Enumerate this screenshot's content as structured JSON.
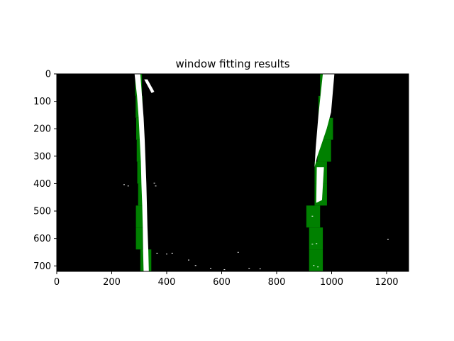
{
  "chart_data": {
    "type": "heatmap",
    "title": "window fitting results",
    "xlabel": "",
    "ylabel": "",
    "xlim": [
      0,
      1280
    ],
    "ylim": [
      720,
      0
    ],
    "xticks": [
      0,
      200,
      400,
      600,
      800,
      1000,
      1200
    ],
    "yticks": [
      0,
      100,
      200,
      300,
      400,
      500,
      600,
      700
    ],
    "grid": false,
    "background_color": "#000000",
    "line_pixel_color": "#ffffff",
    "window_color": "#008000",
    "left_windows": [
      {
        "x0": 285,
        "x1": 310,
        "y0": 0,
        "y1": 80
      },
      {
        "x0": 287,
        "x1": 312,
        "y0": 80,
        "y1": 160
      },
      {
        "x0": 289,
        "x1": 314,
        "y0": 160,
        "y1": 240
      },
      {
        "x0": 291,
        "x1": 316,
        "y0": 240,
        "y1": 320
      },
      {
        "x0": 293,
        "x1": 318,
        "y0": 320,
        "y1": 400
      },
      {
        "x0": 296,
        "x1": 321,
        "y0": 400,
        "y1": 480
      },
      {
        "x0": 288,
        "x1": 313,
        "y0": 480,
        "y1": 560
      },
      {
        "x0": 288,
        "x1": 313,
        "y0": 560,
        "y1": 640
      },
      {
        "x0": 304,
        "x1": 344,
        "y0": 640,
        "y1": 720
      }
    ],
    "right_windows": [
      {
        "x0": 958,
        "x1": 998,
        "y0": 0,
        "y1": 80
      },
      {
        "x0": 952,
        "x1": 992,
        "y0": 80,
        "y1": 160
      },
      {
        "x0": 955,
        "x1": 1005,
        "y0": 160,
        "y1": 240
      },
      {
        "x0": 948,
        "x1": 998,
        "y0": 240,
        "y1": 320
      },
      {
        "x0": 938,
        "x1": 983,
        "y0": 320,
        "y1": 400
      },
      {
        "x0": 938,
        "x1": 983,
        "y0": 400,
        "y1": 480
      },
      {
        "x0": 908,
        "x1": 958,
        "y0": 480,
        "y1": 560
      },
      {
        "x0": 918,
        "x1": 968,
        "y0": 560,
        "y1": 640
      },
      {
        "x0": 918,
        "x1": 968,
        "y0": 640,
        "y1": 720
      }
    ],
    "left_lane_pixels": [
      {
        "x": 283,
        "y": 0
      },
      {
        "x": 292,
        "y": 80
      },
      {
        "x": 298,
        "y": 160
      },
      {
        "x": 302,
        "y": 240
      },
      {
        "x": 306,
        "y": 320
      },
      {
        "x": 308,
        "y": 400
      },
      {
        "x": 311,
        "y": 480
      },
      {
        "x": 313,
        "y": 560
      },
      {
        "x": 314,
        "y": 640
      },
      {
        "x": 316,
        "y": 720
      },
      {
        "x": 335,
        "y": 720
      },
      {
        "x": 333,
        "y": 640
      },
      {
        "x": 330,
        "y": 560
      },
      {
        "x": 328,
        "y": 480
      },
      {
        "x": 326,
        "y": 400
      },
      {
        "x": 323,
        "y": 320
      },
      {
        "x": 320,
        "y": 240
      },
      {
        "x": 316,
        "y": 160
      },
      {
        "x": 310,
        "y": 80
      },
      {
        "x": 304,
        "y": 0
      }
    ],
    "left_dash_pixels": [
      {
        "x": 318,
        "y": 20
      },
      {
        "x": 330,
        "y": 20
      },
      {
        "x": 355,
        "y": 65
      },
      {
        "x": 345,
        "y": 70
      }
    ],
    "right_lane_pixels": [
      {
        "x": 968,
        "y": 0
      },
      {
        "x": 1010,
        "y": 0
      },
      {
        "x": 998,
        "y": 140
      },
      {
        "x": 982,
        "y": 200
      },
      {
        "x": 962,
        "y": 260
      },
      {
        "x": 948,
        "y": 300
      },
      {
        "x": 938,
        "y": 340
      },
      {
        "x": 942,
        "y": 270
      },
      {
        "x": 952,
        "y": 150
      }
    ],
    "right_lower_pixels": [
      {
        "x": 946,
        "y": 340
      },
      {
        "x": 972,
        "y": 340
      },
      {
        "x": 965,
        "y": 460
      },
      {
        "x": 944,
        "y": 470
      }
    ],
    "noise_points": [
      {
        "x": 245,
        "y": 405
      },
      {
        "x": 260,
        "y": 410
      },
      {
        "x": 355,
        "y": 400
      },
      {
        "x": 360,
        "y": 410
      },
      {
        "x": 365,
        "y": 655
      },
      {
        "x": 400,
        "y": 658
      },
      {
        "x": 420,
        "y": 655
      },
      {
        "x": 480,
        "y": 680
      },
      {
        "x": 505,
        "y": 700
      },
      {
        "x": 560,
        "y": 710
      },
      {
        "x": 610,
        "y": 715
      },
      {
        "x": 660,
        "y": 652
      },
      {
        "x": 700,
        "y": 710
      },
      {
        "x": 740,
        "y": 712
      },
      {
        "x": 930,
        "y": 622
      },
      {
        "x": 945,
        "y": 620
      },
      {
        "x": 935,
        "y": 700
      },
      {
        "x": 950,
        "y": 705
      },
      {
        "x": 1205,
        "y": 605
      },
      {
        "x": 930,
        "y": 520
      }
    ]
  }
}
